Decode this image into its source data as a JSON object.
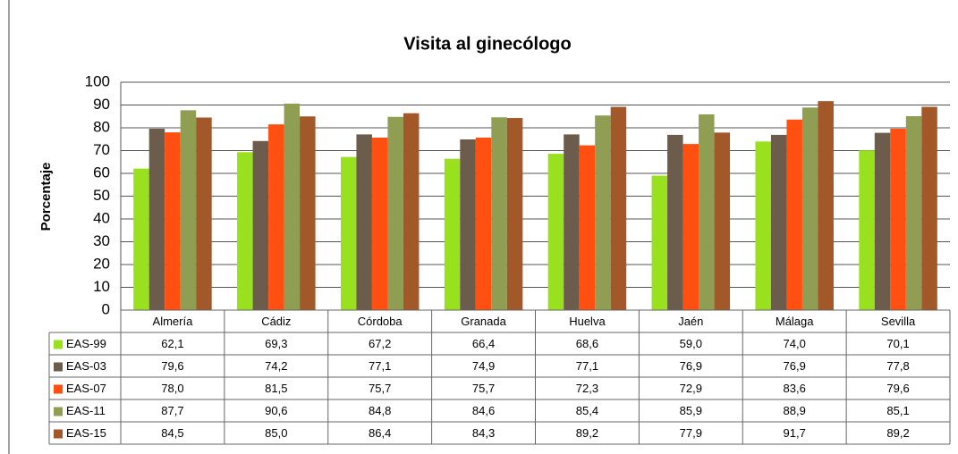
{
  "chart_data": {
    "type": "bar",
    "title": "Visita al ginecólogo",
    "y_label": "Porcentaje",
    "categories": [
      "Almería",
      "Cádiz",
      "Córdoba",
      "Granada",
      "Huelva",
      "Jaén",
      "Málaga",
      "Sevilla"
    ],
    "ylim": [
      0,
      100
    ],
    "yticks": [
      0,
      10,
      20,
      30,
      40,
      50,
      60,
      70,
      80,
      90,
      100
    ],
    "grid": true,
    "series": [
      {
        "name": "EAS-99",
        "color": "#99e01f",
        "values": [
          62.1,
          69.3,
          67.2,
          66.4,
          68.6,
          59.0,
          74.0,
          70.1
        ],
        "value_labels": [
          "62,1",
          "69,3",
          "67,2",
          "66,4",
          "68,6",
          "59,0",
          "74,0",
          "70,1"
        ]
      },
      {
        "name": "EAS-03",
        "color": "#6b5c4c",
        "values": [
          79.6,
          74.2,
          77.1,
          74.9,
          77.1,
          76.9,
          76.9,
          77.8
        ],
        "value_labels": [
          "79,6",
          "74,2",
          "77,1",
          "74,9",
          "77,1",
          "76,9",
          "76,9",
          "77,8"
        ]
      },
      {
        "name": "EAS-07",
        "color": "#ff5012",
        "values": [
          78.0,
          81.5,
          75.7,
          75.7,
          72.3,
          72.9,
          83.6,
          79.6
        ],
        "value_labels": [
          "78,0",
          "81,5",
          "75,7",
          "75,7",
          "72,3",
          "72,9",
          "83,6",
          "79,6"
        ]
      },
      {
        "name": "EAS-11",
        "color": "#8f9e52",
        "values": [
          87.7,
          90.6,
          84.8,
          84.6,
          85.4,
          85.9,
          88.9,
          85.1
        ],
        "value_labels": [
          "87,7",
          "90,6",
          "84,8",
          "84,6",
          "85,4",
          "85,9",
          "88,9",
          "85,1"
        ]
      },
      {
        "name": "EAS-15",
        "color": "#a3582a",
        "values": [
          84.5,
          85.0,
          86.4,
          84.3,
          89.2,
          77.9,
          91.7,
          89.2
        ],
        "value_labels": [
          "84,5",
          "85,0",
          "86,4",
          "84,3",
          "89,2",
          "77,9",
          "91,7",
          "89,2"
        ]
      }
    ]
  }
}
